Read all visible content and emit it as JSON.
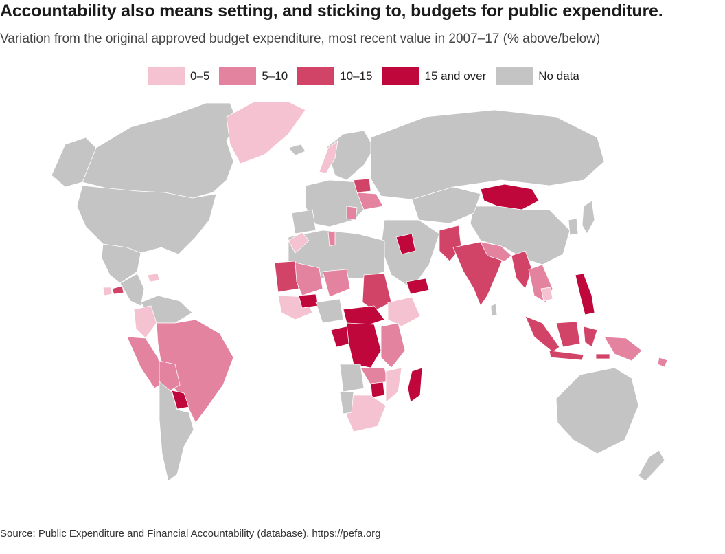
{
  "title": "Accountability also means setting, and sticking to, budgets for public expenditure.",
  "subtitle": "Variation from the original approved budget expenditure, most recent value in 2007–17 (% above/below)",
  "source": "Source: Public Expenditure and Financial Accountability (database). https://pefa.org",
  "legend": [
    {
      "label": "0–5",
      "color": "#f4c2d0"
    },
    {
      "label": "5–10",
      "color": "#e4839f"
    },
    {
      "label": "10–15",
      "color": "#d24467"
    },
    {
      "label": "15 and over",
      "color": "#c0073b"
    },
    {
      "label": "No data",
      "color": "#c4c4c4"
    }
  ],
  "colors": {
    "no_data": "#c4c4c4",
    "c0_5": "#f4c2d0",
    "c5_10": "#e4839f",
    "c10_15": "#d24467",
    "c15_over": "#c0073b"
  }
}
